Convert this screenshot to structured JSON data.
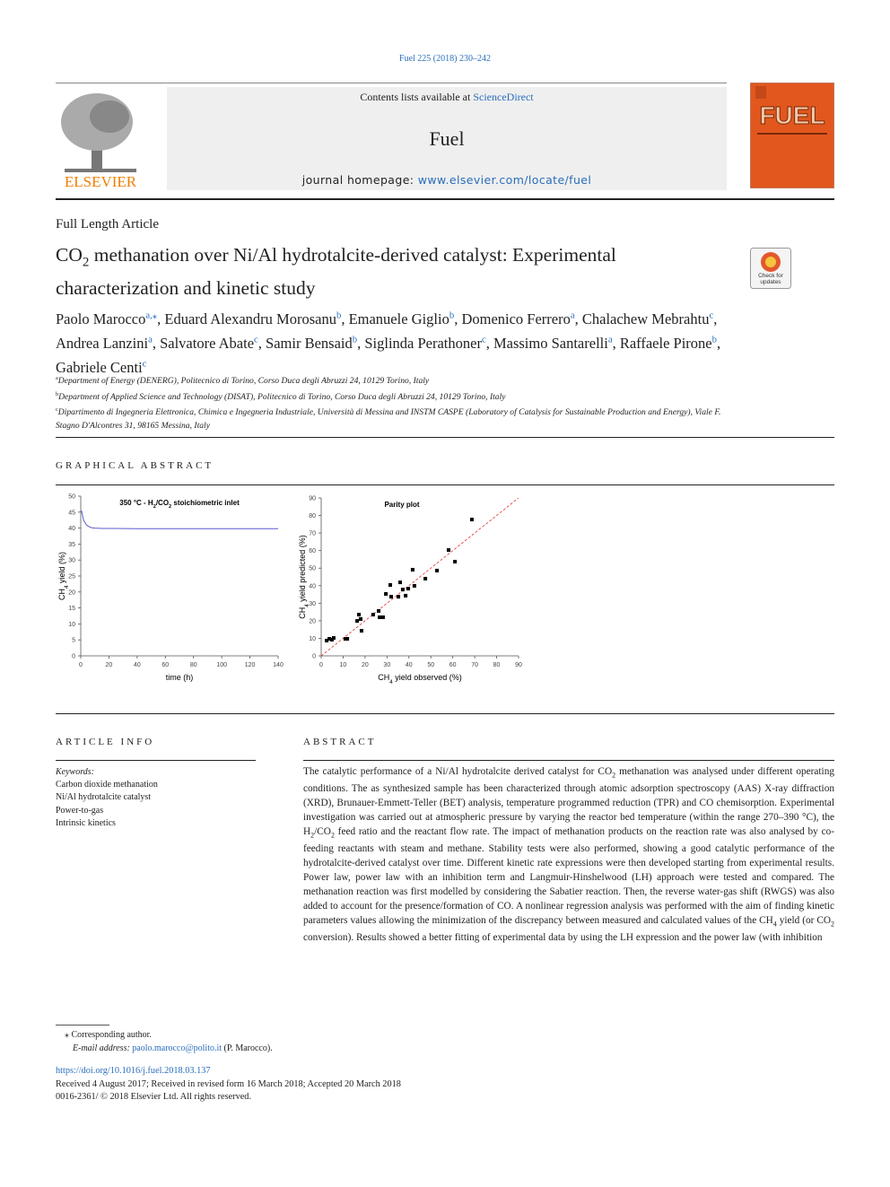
{
  "header": {
    "citation": "Fuel 225 (2018) 230–242",
    "contents_prefix": "Contents lists available at ",
    "contents_link": "ScienceDirect",
    "journal": "Fuel",
    "homepage_prefix": "journal homepage: ",
    "homepage_link": "www.elsevier.com/locate/fuel",
    "publisher": "ELSEVIER",
    "cover_title": "FUEL",
    "badge": "Check for updates"
  },
  "article_type": "Full Length Article",
  "title": [
    {
      "text": "CO"
    },
    {
      "sub": "2"
    },
    {
      "text": " methanation over Ni/Al hydrotalcite-derived catalyst: Experimental characterization and kinetic study"
    }
  ],
  "authors": [
    {
      "name": "Paolo Marocco",
      "aff": "a,⁎",
      "punct": ","
    },
    {
      "name": "Eduard Alexandru Morosanu",
      "aff": "b",
      "punct": ","
    },
    {
      "name": "Emanuele Giglio",
      "aff": "b",
      "punct": ","
    },
    {
      "name": "Domenico Ferrero",
      "aff": "a",
      "punct": ","
    },
    {
      "name": "Chalachew Mebrahtu",
      "aff": "c",
      "punct": ","
    },
    {
      "name": "Andrea Lanzini",
      "aff": "a",
      "punct": ","
    },
    {
      "name": "Salvatore Abate",
      "aff": "c",
      "punct": ","
    },
    {
      "name": "Samir Bensaid",
      "aff": "b",
      "punct": ","
    },
    {
      "name": "Siglinda Perathoner",
      "aff": "c",
      "punct": ","
    },
    {
      "name": "Massimo Santarelli",
      "aff": "a",
      "punct": ","
    },
    {
      "name": "Raffaele Pirone",
      "aff": "b",
      "punct": ","
    },
    {
      "name": "Gabriele Centi",
      "aff": "c"
    }
  ],
  "affiliations": [
    {
      "key": "a",
      "text": "Department of Energy (DENERG), Politecnico di Torino, Corso Duca degli Abruzzi 24, 10129 Torino, Italy"
    },
    {
      "key": "b",
      "text": "Department of Applied Science and Technology (DISAT), Politecnico di Torino, Corso Duca degli Abruzzi 24, 10129 Torino, Italy"
    },
    {
      "key": "c",
      "text": "Dipartimento di Ingegneria Elettronica, Chimica e Ingegneria Industriale, Università di Messina and INSTM CASPE (Laboratory of Catalysis for Sustainable Production and Energy), Viale F. Stagno D'Alcontres 31, 98165 Messina, Italy"
    }
  ],
  "graphical_abstract_heading": "GRAPHICAL ABSTRACT",
  "chart_data": [
    {
      "type": "line",
      "title": [
        {
          "text": "350 °C - H"
        },
        {
          "sub": "2"
        },
        {
          "text": "/CO"
        },
        {
          "sub": "2"
        },
        {
          "text": " stoichiometric inlet"
        }
      ],
      "xlabel": [
        {
          "text": "time (h)"
        }
      ],
      "ylabel": [
        {
          "text": "CH"
        },
        {
          "sub": "4"
        },
        {
          "text": " yield (%)"
        }
      ],
      "x": [
        0.5,
        2,
        4,
        6,
        8,
        10,
        15,
        20,
        40,
        60,
        80,
        100,
        120,
        140
      ],
      "values": [
        45.5,
        42.5,
        41,
        40.4,
        40.1,
        40,
        39.9,
        39.9,
        39.8,
        39.8,
        39.8,
        39.8,
        39.8,
        39.8
      ],
      "color": "#5a5ad0",
      "xlim": [
        0,
        140
      ],
      "xticks": [
        0,
        20,
        40,
        60,
        80,
        100,
        120,
        140
      ],
      "ylim": [
        0,
        50
      ],
      "yticks": [
        0,
        5,
        10,
        15,
        20,
        25,
        30,
        35,
        40,
        45,
        50
      ]
    },
    {
      "type": "scatter",
      "title": [
        {
          "text": "Parity plot"
        }
      ],
      "xlabel": [
        {
          "text": "CH"
        },
        {
          "sub": "4"
        },
        {
          "text": " yield observed (%)"
        }
      ],
      "ylabel": [
        {
          "text": "CH"
        },
        {
          "sub": "4"
        },
        {
          "text": " yield predicted (%)"
        }
      ],
      "x": [
        2.5,
        3.7,
        4.9,
        5.7,
        11,
        11.9,
        16.4,
        17.2,
        18,
        18.4,
        23.7,
        26.2,
        26.6,
        28.2,
        29.5,
        31.9,
        31.5,
        35.2,
        36,
        37.2,
        38.5,
        39.7,
        41.7,
        42.5,
        47.5,
        52.8,
        58.1,
        61,
        68.7
      ],
      "values": [
        8.7,
        9.7,
        9.2,
        10.2,
        9.7,
        9.7,
        19.9,
        23.5,
        21,
        14.3,
        23.5,
        25.6,
        22,
        22,
        35.3,
        33.7,
        40.4,
        33.7,
        41.9,
        37.8,
        34.3,
        38.3,
        49.1,
        39.9,
        44,
        48.6,
        60.3,
        53.7,
        77.7
      ],
      "color": "#000000",
      "diagonal": true,
      "diagonal_color": "#e03030",
      "xlim": [
        0,
        90
      ],
      "xticks": [
        0,
        10,
        20,
        30,
        40,
        50,
        60,
        70,
        80,
        90
      ],
      "ylim": [
        0,
        90
      ],
      "yticks": [
        0,
        10,
        20,
        30,
        40,
        50,
        60,
        70,
        80,
        90
      ]
    }
  ],
  "article_info": {
    "heading": "ARTICLE INFO",
    "keywords_label": "Keywords:",
    "keywords": [
      "Carbon dioxide methanation",
      "Ni/Al hydrotalcite catalyst",
      "Power-to-gas",
      "Intrinsic kinetics"
    ]
  },
  "abstract": {
    "heading": "ABSTRACT",
    "runs": [
      {
        "text": "The catalytic performance of a Ni/Al hydrotalcite derived catalyst for CO"
      },
      {
        "sub": "2"
      },
      {
        "text": " methanation was analysed under different operating conditions. The as synthesized sample has been characterized through atomic adsorption spectroscopy (AAS) X-ray diffraction (XRD), Brunauer-Emmett-Teller (BET) analysis, temperature programmed reduction (TPR) and CO chemisorption. Experimental investigation was carried out at atmospheric pressure by varying the reactor bed temperature (within the range 270–390 °C), the H"
      },
      {
        "sub": "2"
      },
      {
        "text": "/CO"
      },
      {
        "sub": "2"
      },
      {
        "text": " feed ratio and the reactant flow rate. The impact of methanation products on the reaction rate was also analysed by co-feeding reactants with steam and methane. Stability tests were also performed, showing a good catalytic performance of the hydrotalcite-derived catalyst over time. Different kinetic rate expressions were then developed starting from experimental results. Power law, power law with an inhibition term and Langmuir-Hinshelwood (LH) approach were tested and compared. The methanation reaction was first modelled by considering the Sabatier reaction. Then, the reverse water-gas shift (RWGS) was also added to account for the presence/formation of CO. A nonlinear regression analysis was performed with the aim of finding kinetic parameters values allowing the minimization of the discrepancy between measured and calculated values of the CH"
      },
      {
        "sub": "4"
      },
      {
        "text": " yield (or CO"
      },
      {
        "sub": "2"
      },
      {
        "text": " conversion). Results showed a better fitting of experimental data by using the LH expression and the power law (with inhibition"
      }
    ]
  },
  "footnote": {
    "mark": "⁎",
    "corresponding": "Corresponding author.",
    "email_label": "E-mail address:",
    "email": "paolo.marocco@polito.it",
    "email_suffix": " (P. Marocco)."
  },
  "footer": {
    "doi": "https://doi.org/10.1016/j.fuel.2018.03.137",
    "received": "Received 4 August 2017; Received in revised form 16 March 2018; Accepted 20 March 2018",
    "copyright": "0016-2361/ © 2018 Elsevier Ltd. All rights reserved."
  }
}
